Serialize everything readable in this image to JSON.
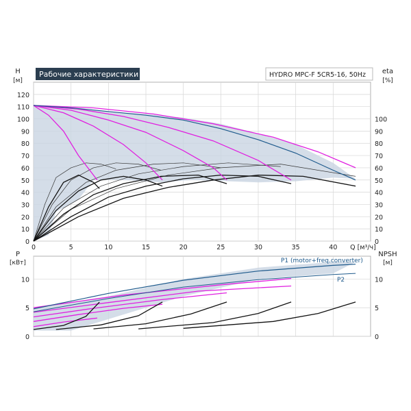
{
  "header": {
    "title": "Рабочие характеристики",
    "model": "HYDRO MPC-F 5CR5-16, 50Hz"
  },
  "colors": {
    "title_bg": "#2b3e50",
    "band_fill": "#c9d5e2",
    "envelope": "#1e5a8c",
    "pump_curves": "#e020e0",
    "efficiency_curves": "#111111",
    "grid": "#d6d6d6"
  },
  "chart_data": [
    {
      "id": "top",
      "type": "line",
      "ylabel": "H",
      "yunit": "[м]",
      "y2label": "eta",
      "y2unit": "[%]",
      "xlabel": "Q [м³/ч]",
      "xlim": [
        0,
        45
      ],
      "ylim": [
        0,
        130
      ],
      "y2lim": [
        0,
        130
      ],
      "grid": true,
      "x_ticks": [
        "0",
        "5",
        "10",
        "15",
        "20",
        "25",
        "30",
        "35",
        "40"
      ],
      "x_tick_values": [
        0,
        5,
        10,
        15,
        20,
        25,
        30,
        35,
        40
      ],
      "y_ticks": [
        "0",
        "10",
        "20",
        "30",
        "40",
        "50",
        "60",
        "70",
        "80",
        "90",
        "100",
        "110",
        "120"
      ],
      "y_tick_values": [
        0,
        10,
        20,
        30,
        40,
        50,
        60,
        70,
        80,
        90,
        100,
        110,
        120
      ],
      "y2_ticks": [
        "0",
        "10",
        "20",
        "30",
        "40",
        "50",
        "60",
        "70",
        "80",
        "90",
        "100"
      ],
      "y2_tick_values": [
        0,
        10,
        20,
        30,
        40,
        50,
        60,
        70,
        80,
        90,
        100
      ],
      "band": [
        [
          0,
          111
        ],
        [
          5,
          108
        ],
        [
          10,
          106
        ],
        [
          15,
          104
        ],
        [
          20,
          101
        ],
        [
          25,
          96
        ],
        [
          30,
          88
        ],
        [
          35,
          79
        ],
        [
          40,
          64
        ],
        [
          43,
          51
        ],
        [
          43,
          51
        ],
        [
          40,
          52
        ],
        [
          35,
          49
        ],
        [
          30,
          48
        ],
        [
          26,
          49
        ],
        [
          21,
          50
        ],
        [
          17,
          48
        ],
        [
          12,
          50
        ],
        [
          8,
          50
        ],
        [
          6,
          34
        ],
        [
          3,
          24
        ],
        [
          2,
          5
        ],
        [
          0,
          0
        ]
      ],
      "envelope": [
        [
          0,
          111
        ],
        [
          5,
          109
        ],
        [
          10,
          106
        ],
        [
          15,
          103
        ],
        [
          20,
          99
        ],
        [
          25,
          92
        ],
        [
          30,
          83
        ],
        [
          35,
          72
        ],
        [
          40,
          58
        ],
        [
          43,
          50
        ]
      ],
      "pump_curves": [
        [
          [
            0,
            111
          ],
          [
            2,
            103
          ],
          [
            4,
            90
          ],
          [
            6,
            70
          ],
          [
            7.5,
            58
          ],
          [
            8.5,
            50
          ]
        ],
        [
          [
            0,
            111
          ],
          [
            4,
            105
          ],
          [
            8,
            94
          ],
          [
            12,
            79
          ],
          [
            15,
            64
          ],
          [
            17.2,
            50
          ]
        ],
        [
          [
            0,
            111
          ],
          [
            5,
            107
          ],
          [
            10,
            99
          ],
          [
            15,
            89
          ],
          [
            20,
            74
          ],
          [
            24,
            60
          ],
          [
            25.8,
            50
          ]
        ],
        [
          [
            0,
            111
          ],
          [
            6,
            108
          ],
          [
            12,
            102
          ],
          [
            18,
            93
          ],
          [
            24,
            82
          ],
          [
            30,
            66
          ],
          [
            34.4,
            50
          ]
        ],
        [
          [
            0,
            111
          ],
          [
            8,
            109
          ],
          [
            16,
            104
          ],
          [
            24,
            96
          ],
          [
            32,
            85
          ],
          [
            38,
            73
          ],
          [
            43,
            60
          ]
        ]
      ],
      "eta_curves": [
        [
          [
            0,
            0
          ],
          [
            2,
            28
          ],
          [
            4,
            48
          ],
          [
            6,
            54
          ],
          [
            8,
            48
          ],
          [
            8.8,
            43
          ]
        ],
        [
          [
            0,
            0
          ],
          [
            3,
            25
          ],
          [
            6,
            41
          ],
          [
            9,
            50
          ],
          [
            12,
            53
          ],
          [
            15,
            50
          ],
          [
            17.2,
            45
          ]
        ],
        [
          [
            0,
            0
          ],
          [
            4,
            22
          ],
          [
            8,
            38
          ],
          [
            12,
            47
          ],
          [
            17,
            53
          ],
          [
            22,
            54
          ],
          [
            25.8,
            47
          ]
        ],
        [
          [
            0,
            0
          ],
          [
            5,
            20
          ],
          [
            10,
            36
          ],
          [
            15,
            45
          ],
          [
            20,
            51
          ],
          [
            25,
            54
          ],
          [
            30,
            53
          ],
          [
            34.4,
            47
          ]
        ],
        [
          [
            0,
            0
          ],
          [
            6,
            20
          ],
          [
            12,
            35
          ],
          [
            18,
            44
          ],
          [
            24,
            50
          ],
          [
            30,
            54
          ],
          [
            36,
            53
          ],
          [
            43,
            45
          ]
        ]
      ],
      "eta_thin": [
        [
          [
            0,
            0
          ],
          [
            1.5,
            30
          ],
          [
            3,
            52
          ],
          [
            5,
            60
          ],
          [
            7,
            64
          ],
          [
            9,
            63
          ],
          [
            11,
            59
          ]
        ],
        [
          [
            0,
            0
          ],
          [
            2.5,
            30
          ],
          [
            5,
            50
          ],
          [
            8,
            60
          ],
          [
            11,
            64
          ],
          [
            14,
            63
          ],
          [
            17,
            58
          ]
        ],
        [
          [
            0,
            0
          ],
          [
            3,
            28
          ],
          [
            7,
            48
          ],
          [
            11,
            58
          ],
          [
            16,
            63
          ],
          [
            20,
            64
          ],
          [
            25,
            60
          ]
        ],
        [
          [
            0,
            0
          ],
          [
            4,
            27
          ],
          [
            9,
            45
          ],
          [
            14,
            55
          ],
          [
            20,
            61
          ],
          [
            26,
            64
          ],
          [
            33,
            61
          ]
        ],
        [
          [
            0,
            0
          ],
          [
            5,
            26
          ],
          [
            11,
            43
          ],
          [
            18,
            54
          ],
          [
            25,
            60
          ],
          [
            33,
            63
          ],
          [
            43,
            53
          ]
        ]
      ]
    },
    {
      "id": "bottom",
      "type": "line",
      "ylabel": "P",
      "yunit": "[кВт]",
      "y2label": "NPSH",
      "y2unit": "[м]",
      "xlim": [
        0,
        45
      ],
      "ylim": [
        0,
        14
      ],
      "y2lim": [
        0,
        14
      ],
      "grid": true,
      "y_ticks": [
        "0",
        "5",
        "10"
      ],
      "y_tick_values": [
        0,
        5,
        10
      ],
      "y2_ticks": [
        "0",
        "5",
        "10"
      ],
      "y2_tick_values": [
        0,
        5,
        10
      ],
      "band": [
        [
          0,
          5
        ],
        [
          10,
          7
        ],
        [
          20,
          10
        ],
        [
          30,
          12
        ],
        [
          40,
          13
        ],
        [
          43,
          13
        ],
        [
          40,
          11
        ],
        [
          30,
          10
        ],
        [
          20,
          7
        ],
        [
          10,
          3
        ],
        [
          5,
          1
        ],
        [
          0,
          1
        ]
      ],
      "p1_curve": [
        [
          0,
          4.8
        ],
        [
          10,
          7.5
        ],
        [
          20,
          9.8
        ],
        [
          30,
          11.4
        ],
        [
          40,
          12.4
        ],
        [
          43,
          12.6
        ]
      ],
      "p2_curve": [
        [
          0,
          4.3
        ],
        [
          10,
          6.6
        ],
        [
          20,
          8.6
        ],
        [
          30,
          9.9
        ],
        [
          40,
          10.8
        ],
        [
          43,
          11.0
        ]
      ],
      "pump_curves": [
        [
          [
            0,
            1.7
          ],
          [
            4,
            2.5
          ],
          [
            8.5,
            3.2
          ]
        ],
        [
          [
            0,
            2.6
          ],
          [
            6,
            3.8
          ],
          [
            12,
            4.9
          ],
          [
            17.2,
            5.6
          ]
        ],
        [
          [
            0,
            3.4
          ],
          [
            8,
            4.9
          ],
          [
            17,
            6.4
          ],
          [
            25.8,
            7.6
          ]
        ],
        [
          [
            0,
            4.2
          ],
          [
            10,
            5.9
          ],
          [
            22,
            7.9
          ],
          [
            34.4,
            8.8
          ]
        ],
        [
          [
            0,
            5.0
          ],
          [
            12,
            7.2
          ],
          [
            25,
            9.0
          ],
          [
            34.4,
            10.1
          ]
        ]
      ],
      "npsh_curves": [
        [
          [
            0,
            1.2
          ],
          [
            4,
            1.9
          ],
          [
            7,
            3.5
          ],
          [
            8.8,
            6.0
          ]
        ],
        [
          [
            3,
            1.2
          ],
          [
            9,
            2.0
          ],
          [
            14,
            3.6
          ],
          [
            17.2,
            6.0
          ]
        ],
        [
          [
            8,
            1.3
          ],
          [
            15,
            2.2
          ],
          [
            21,
            3.9
          ],
          [
            25.8,
            6.0
          ]
        ],
        [
          [
            14,
            1.3
          ],
          [
            24,
            2.4
          ],
          [
            30,
            4.0
          ],
          [
            34.4,
            6.0
          ]
        ],
        [
          [
            20,
            1.4
          ],
          [
            32,
            2.6
          ],
          [
            38,
            4.0
          ],
          [
            43,
            6.0
          ]
        ]
      ],
      "labels": {
        "p1": "P1 (motor+freq.converter)",
        "p2": "P2"
      }
    }
  ]
}
